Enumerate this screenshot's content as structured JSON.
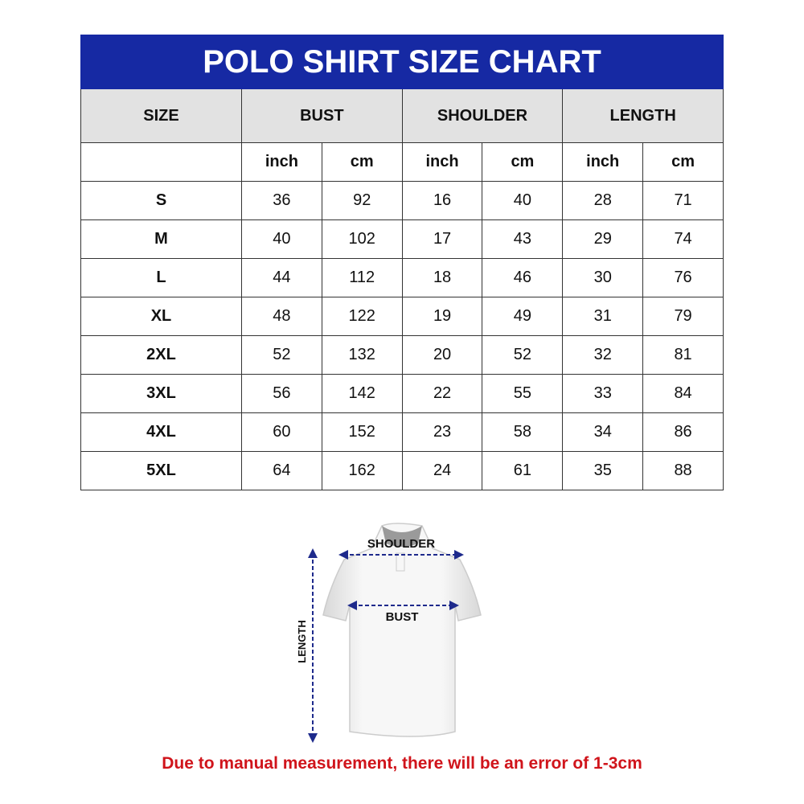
{
  "title": "POLO SHIRT SIZE CHART",
  "headers": [
    "SIZE",
    "BUST",
    "SHOULDER",
    "LENGTH"
  ],
  "units": [
    "inch",
    "cm",
    "inch",
    "cm",
    "inch",
    "cm"
  ],
  "rows": [
    {
      "size": "S",
      "values": [
        "36",
        "92",
        "16",
        "40",
        "28",
        "71"
      ]
    },
    {
      "size": "M",
      "values": [
        "40",
        "102",
        "17",
        "43",
        "29",
        "74"
      ]
    },
    {
      "size": "L",
      "values": [
        "44",
        "112",
        "18",
        "46",
        "30",
        "76"
      ]
    },
    {
      "size": "XL",
      "values": [
        "48",
        "122",
        "19",
        "49",
        "31",
        "79"
      ]
    },
    {
      "size": "2XL",
      "values": [
        "52",
        "132",
        "20",
        "52",
        "32",
        "81"
      ]
    },
    {
      "size": "3XL",
      "values": [
        "56",
        "142",
        "22",
        "55",
        "33",
        "84"
      ]
    },
    {
      "size": "4XL",
      "values": [
        "60",
        "152",
        "23",
        "58",
        "34",
        "86"
      ]
    },
    {
      "size": "5XL",
      "values": [
        "64",
        "162",
        "24",
        "61",
        "35",
        "88"
      ]
    }
  ],
  "diagram": {
    "shoulder": "SHOULDER",
    "bust": "BUST",
    "length": "LENGTH"
  },
  "note": "Due to manual measurement, there will be an error of 1-3cm",
  "colors": {
    "title_bg": "#1629a3",
    "header_bg": "#e2e2e2",
    "note": "#d0141b",
    "arrow": "#1e2a8c"
  }
}
